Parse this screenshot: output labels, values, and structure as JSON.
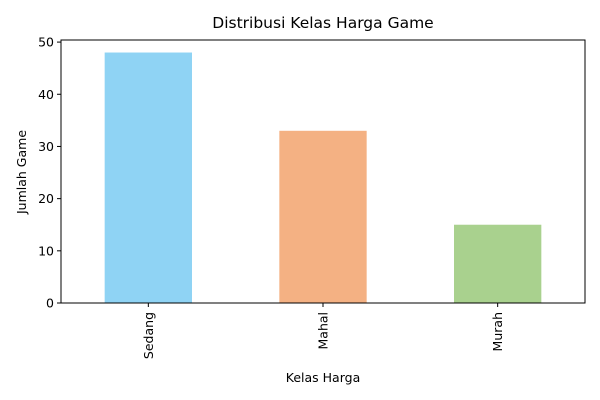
{
  "chart_data": {
    "type": "bar",
    "title": "Distribusi Kelas Harga Game",
    "xlabel": "Kelas Harga",
    "ylabel": "Jumlah Game",
    "categories": [
      "Sedang",
      "Mahal",
      "Murah"
    ],
    "values": [
      48,
      33,
      15
    ],
    "colors": [
      "#8fd3f4",
      "#f4b183",
      "#a9d18e"
    ],
    "ylim": [
      0,
      50.4
    ],
    "yticks": [
      0,
      10,
      20,
      30,
      40,
      50
    ],
    "grid": false,
    "legend": "none"
  }
}
